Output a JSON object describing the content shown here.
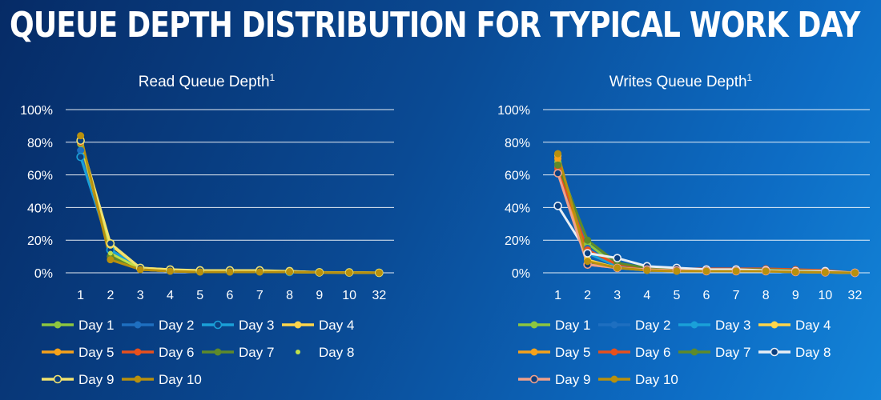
{
  "title": "QUEUE DEPTH DISTRIBUTION FOR TYPICAL WORK DAY",
  "chart_data": [
    {
      "type": "line",
      "title": "Read Queue Depth",
      "title_sup": "1",
      "categories": [
        "1",
        "2",
        "3",
        "4",
        "5",
        "6",
        "7",
        "8",
        "9",
        "10",
        "32"
      ],
      "y_ticks": [
        "100%",
        "80%",
        "60%",
        "40%",
        "20%",
        "0%"
      ],
      "ylim": [
        0,
        100
      ],
      "grid": true,
      "legend_position": "bottom",
      "series": [
        {
          "name": "Day 1",
          "color": "#8dc63f",
          "marker": "filled",
          "values": [
            79,
            14,
            3,
            1.5,
            1,
            1,
            1,
            0.5,
            0.3,
            0.2,
            0
          ]
        },
        {
          "name": "Day 2",
          "color": "#1e6fc0",
          "marker": "filled",
          "values": [
            75,
            14,
            3,
            1.5,
            1,
            1,
            1,
            0.5,
            0.3,
            0.2,
            0
          ]
        },
        {
          "name": "Day 3",
          "color": "#1aa0d8",
          "marker": "open",
          "values": [
            71,
            14,
            3,
            1.5,
            1,
            1,
            1,
            0.5,
            0.3,
            0.2,
            0
          ]
        },
        {
          "name": "Day 4",
          "color": "#ffd54a",
          "marker": "filled",
          "values": [
            80,
            17,
            3,
            2,
            1,
            1,
            1,
            1,
            0.3,
            0.2,
            0
          ]
        },
        {
          "name": "Day 5",
          "color": "#f7a21a",
          "marker": "filled",
          "values": [
            82,
            10,
            2,
            1,
            0.5,
            0.5,
            0.5,
            0.5,
            0.2,
            0.1,
            0
          ]
        },
        {
          "name": "Day 6",
          "color": "#e8501c",
          "marker": "filled",
          "values": [
            80,
            10,
            2,
            1,
            0.5,
            0.5,
            0.5,
            0.5,
            0.2,
            0.1,
            0
          ]
        },
        {
          "name": "Day 7",
          "color": "#5e8a2a",
          "marker": "filled",
          "values": [
            81,
            10,
            2,
            1,
            0.5,
            0.5,
            0.5,
            0.5,
            0.2,
            0.1,
            0
          ]
        },
        {
          "name": "Day 8",
          "color": "#bfe04a",
          "marker": "dot",
          "values": [
            80,
            12,
            2.5,
            1.5,
            1,
            1,
            1,
            0.5,
            0.2,
            0.1,
            0
          ]
        },
        {
          "name": "Day 9",
          "color": "#f2e36e",
          "marker": "open",
          "values": [
            81,
            18,
            3,
            2,
            1.5,
            1.5,
            1.5,
            1,
            0.3,
            0.2,
            0
          ]
        },
        {
          "name": "Day 10",
          "color": "#b8900e",
          "marker": "filled",
          "values": [
            84,
            8,
            2,
            1,
            0.5,
            0.5,
            0.5,
            0.5,
            0.2,
            0.1,
            0
          ]
        }
      ]
    },
    {
      "type": "line",
      "title": "Writes Queue Depth",
      "title_sup": "1",
      "categories": [
        "1",
        "2",
        "3",
        "4",
        "5",
        "6",
        "7",
        "8",
        "9",
        "10",
        "32"
      ],
      "y_ticks": [
        "100%",
        "80%",
        "60%",
        "40%",
        "20%",
        "0%"
      ],
      "ylim": [
        0,
        100
      ],
      "grid": true,
      "legend_position": "bottom",
      "series": [
        {
          "name": "Day 1",
          "color": "#8dc63f",
          "marker": "filled",
          "values": [
            68,
            18,
            4,
            2,
            1.5,
            1,
            1,
            1,
            0.5,
            0.3,
            0
          ]
        },
        {
          "name": "Day 2",
          "color": "#1e6fc0",
          "marker": "filled",
          "values": [
            66,
            15,
            4,
            2,
            1.5,
            1,
            1,
            1,
            0.5,
            0.3,
            0
          ]
        },
        {
          "name": "Day 3",
          "color": "#1aa0d8",
          "marker": "filled",
          "values": [
            65,
            12,
            4,
            2,
            1.5,
            1,
            1,
            1,
            0.5,
            0.3,
            0
          ]
        },
        {
          "name": "Day 4",
          "color": "#ffd54a",
          "marker": "filled",
          "values": [
            72,
            8,
            3,
            2,
            1.5,
            1,
            1,
            1,
            0.5,
            0.3,
            0
          ]
        },
        {
          "name": "Day 5",
          "color": "#f7a21a",
          "marker": "filled",
          "values": [
            70,
            5,
            3,
            1.5,
            1,
            1,
            1,
            1,
            0.5,
            0.3,
            0
          ]
        },
        {
          "name": "Day 6",
          "color": "#e8501c",
          "marker": "filled",
          "values": [
            64,
            14,
            5,
            3,
            2.5,
            2.5,
            2.5,
            2.5,
            2,
            1.5,
            0
          ]
        },
        {
          "name": "Day 7",
          "color": "#5e8a2a",
          "marker": "filled",
          "values": [
            66,
            20,
            6,
            3,
            2,
            2,
            2,
            2,
            1.5,
            1,
            0
          ]
        },
        {
          "name": "Day 8",
          "color": "#e8eef5",
          "marker": "open",
          "values": [
            41,
            12,
            9,
            4,
            3,
            2,
            2,
            1.5,
            1,
            1,
            0
          ]
        },
        {
          "name": "Day 9",
          "color": "#f0a08a",
          "marker": "open",
          "values": [
            61,
            5,
            3,
            2,
            1.5,
            1,
            1,
            1,
            0.5,
            0.3,
            0
          ]
        },
        {
          "name": "Day 10",
          "color": "#b8900e",
          "marker": "filled",
          "values": [
            73,
            7,
            3,
            1.5,
            1,
            1,
            1,
            1,
            0.5,
            0.3,
            0
          ]
        }
      ]
    }
  ]
}
